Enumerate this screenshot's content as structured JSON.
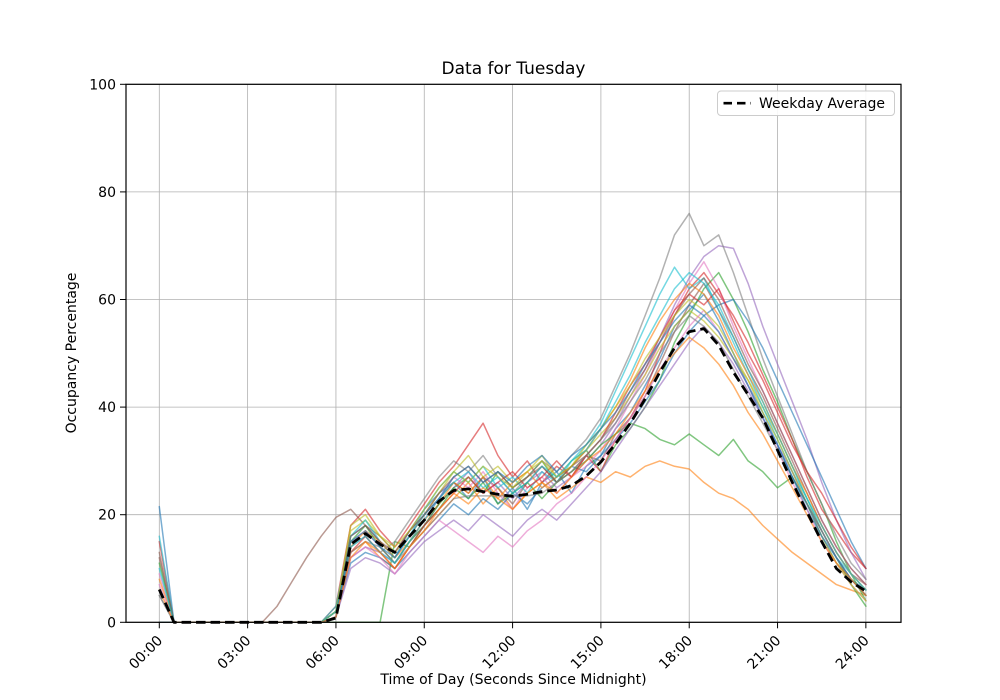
{
  "figure": {
    "background": "#ffffff"
  },
  "chart_data": {
    "type": "line",
    "title": "Data for Tuesday",
    "xlabel": "Time of Day (Seconds Since Midnight)",
    "ylabel": "Occupancy Percentage",
    "grid": true,
    "ylim": [
      0,
      100
    ],
    "y_ticks": [
      0,
      20,
      40,
      60,
      80,
      100
    ],
    "y_tick_labels": [
      "0",
      "20",
      "40",
      "60",
      "80",
      "100"
    ],
    "x_tick_hours": [
      0,
      3,
      6,
      9,
      12,
      15,
      18,
      21,
      24
    ],
    "x_tick_labels": [
      "00:00",
      "03:00",
      "06:00",
      "09:00",
      "12:00",
      "15:00",
      "18:00",
      "21:00",
      "24:00"
    ],
    "legend": {
      "position": "upper right",
      "entries": [
        {
          "label": "Weekday Average",
          "style": "dashed",
          "color": "#000000"
        }
      ]
    },
    "line_alpha": 0.6,
    "x_hours": [
      0,
      0.5,
      1,
      1.5,
      2,
      2.5,
      3,
      3.5,
      4,
      4.5,
      5,
      5.5,
      6,
      6.5,
      7,
      7.5,
      8,
      8.5,
      9,
      9.5,
      10,
      10.5,
      11,
      11.5,
      12,
      12.5,
      13,
      13.5,
      14,
      14.5,
      15,
      15.5,
      16,
      16.5,
      17,
      17.5,
      18,
      18.5,
      19,
      19.5,
      20,
      20.5,
      21,
      21.5,
      22,
      22.5,
      23,
      23.5,
      24
    ],
    "average_series": {
      "name": "Weekday Average",
      "color": "#000000",
      "dashed": true,
      "values": [
        6.1,
        0,
        0,
        0,
        0,
        0,
        0,
        0,
        0,
        0,
        0,
        0,
        0.8,
        14.5,
        16.5,
        14.5,
        13,
        16,
        19,
        22.5,
        24.5,
        24.8,
        24.3,
        23.8,
        23.4,
        23.8,
        24.3,
        24.6,
        25.4,
        27.2,
        29.8,
        33.2,
        37,
        41.5,
        46.5,
        51,
        54,
        54.6,
        51.5,
        46.5,
        42.3,
        38,
        32,
        26,
        20.5,
        15,
        10,
        7.5,
        5.8
      ]
    },
    "series": [
      {
        "name": "series-01",
        "color": "#1f77b4",
        "values": [
          21.5,
          0,
          0,
          0,
          0,
          0,
          0,
          0,
          0,
          0,
          0,
          0,
          2,
          16,
          18,
          15,
          12,
          17,
          21,
          24,
          26,
          23,
          27,
          22,
          25,
          21,
          26,
          28,
          24,
          29,
          31,
          36,
          39,
          44,
          49,
          55,
          58,
          61,
          56,
          50,
          44,
          39,
          33,
          27,
          21,
          16,
          11,
          8,
          6
        ]
      },
      {
        "name": "series-02",
        "color": "#ff7f0e",
        "values": [
          0,
          0,
          0,
          0,
          0,
          0,
          0,
          0,
          0,
          0,
          0,
          0,
          1,
          13,
          15,
          12,
          10,
          14,
          17,
          20,
          23,
          26,
          22,
          25,
          21,
          24,
          26,
          23,
          25,
          27,
          26,
          28,
          27,
          29,
          30,
          29,
          28.5,
          26,
          24,
          23,
          21,
          18,
          15.5,
          13,
          11,
          9,
          7,
          6,
          5
        ]
      },
      {
        "name": "series-03",
        "color": "#2ca02c",
        "values": [
          0,
          0,
          0,
          0,
          0,
          0,
          0,
          0,
          0,
          0,
          0,
          0,
          0,
          0,
          0,
          0,
          15,
          14,
          18,
          21,
          25,
          27,
          24,
          28,
          25,
          27,
          30,
          26,
          29,
          32,
          28,
          33,
          36,
          40,
          45,
          52,
          57,
          62,
          65,
          60,
          54,
          47,
          41,
          34,
          28,
          22,
          15,
          9,
          4
        ]
      },
      {
        "name": "series-04",
        "color": "#d62728",
        "values": [
          15,
          0,
          0,
          0,
          0,
          0,
          0,
          0,
          0,
          0,
          0,
          0,
          3,
          18,
          21,
          17,
          14,
          18,
          22,
          26,
          29,
          33,
          37,
          31,
          27,
          30,
          26,
          29,
          27,
          31,
          28,
          34,
          38,
          43,
          50,
          57,
          62,
          65,
          61,
          57,
          52,
          46,
          40,
          34,
          27,
          21,
          17,
          13,
          10
        ]
      },
      {
        "name": "series-05",
        "color": "#9467bd",
        "values": [
          0,
          0,
          0,
          0,
          0,
          0,
          0,
          0,
          0,
          0,
          0,
          0,
          1,
          12,
          14,
          13,
          11,
          15,
          18,
          22,
          25,
          28,
          24,
          26,
          23,
          26,
          28,
          25,
          27,
          30,
          33,
          37,
          42,
          47,
          53,
          59,
          64,
          68,
          70,
          69.5,
          63,
          55,
          48,
          41,
          34,
          26,
          19,
          13,
          8
        ]
      },
      {
        "name": "series-06",
        "color": "#8c564b",
        "values": [
          12,
          0,
          0,
          0,
          0,
          0,
          0,
          0,
          3,
          7.5,
          12,
          16,
          19.5,
          21,
          18,
          16,
          13,
          17,
          20,
          23,
          26,
          24,
          27,
          25,
          22,
          26,
          29,
          26,
          28,
          31,
          30,
          35,
          38,
          42,
          48,
          54,
          59,
          63,
          58,
          53,
          47,
          42,
          36,
          30,
          24,
          18,
          13,
          9,
          7
        ]
      },
      {
        "name": "series-07",
        "color": "#e377c2",
        "values": [
          9,
          0,
          0,
          0,
          0,
          0,
          0,
          0,
          0,
          0,
          0,
          0,
          2,
          15,
          17,
          14,
          11,
          15,
          19,
          23,
          27,
          25,
          28,
          24,
          21,
          25,
          27,
          24,
          27,
          29,
          32,
          36,
          41,
          46,
          52,
          58,
          63,
          67,
          62,
          55,
          49,
          43,
          37,
          31,
          25,
          19,
          14,
          10,
          7
        ]
      },
      {
        "name": "series-08",
        "color": "#7f7f7f",
        "values": [
          5,
          0,
          0,
          0,
          0,
          0,
          0,
          0,
          0,
          0,
          0,
          0,
          1,
          14,
          16,
          13,
          15,
          19,
          23,
          27,
          30,
          28,
          31,
          27,
          24,
          27,
          30,
          28,
          31,
          34,
          38,
          44,
          50,
          57,
          64,
          72,
          76,
          70,
          72,
          65,
          57,
          49,
          42,
          35,
          28,
          22,
          16,
          11,
          8
        ]
      },
      {
        "name": "series-09",
        "color": "#bcbd22",
        "values": [
          0,
          0,
          0,
          0,
          0,
          0,
          0,
          0,
          0,
          0,
          0,
          0,
          2,
          17,
          19,
          16,
          13,
          16,
          20,
          24,
          28,
          31,
          27,
          29,
          26,
          28,
          31,
          27,
          30,
          32,
          35,
          38,
          42,
          46,
          51,
          55,
          58,
          56,
          53,
          49,
          45,
          40,
          35,
          29,
          23,
          17,
          12,
          8,
          5
        ]
      },
      {
        "name": "series-10",
        "color": "#17becf",
        "values": [
          16,
          0,
          0,
          0,
          0,
          0,
          0,
          0,
          0,
          0,
          0,
          0,
          3,
          16,
          19,
          15,
          12,
          16,
          21,
          25,
          28,
          26,
          29,
          25,
          27,
          24,
          28,
          26,
          30,
          33,
          37,
          43,
          49,
          55,
          61,
          66,
          62,
          64,
          58,
          52,
          46,
          40,
          34,
          28,
          23,
          17,
          12,
          9,
          6
        ]
      },
      {
        "name": "series-11",
        "color": "#1f77b4",
        "values": [
          0,
          0,
          0,
          0,
          0,
          0,
          0,
          0,
          0,
          0,
          0,
          0,
          1,
          11,
          13,
          12,
          10,
          13,
          16,
          19,
          22,
          20,
          23,
          21,
          24,
          22,
          25,
          27,
          29,
          28,
          31,
          34,
          37,
          41,
          45,
          50,
          54,
          57,
          59,
          60,
          56,
          51,
          45,
          39,
          33,
          27,
          21,
          15,
          10
        ]
      },
      {
        "name": "series-12",
        "color": "#ff7f0e",
        "values": [
          8,
          0,
          0,
          0,
          0,
          0,
          0,
          0,
          0,
          0,
          0,
          0,
          2,
          14,
          17,
          15,
          12,
          15,
          19,
          22,
          26,
          24,
          27,
          23,
          26,
          28,
          25,
          27,
          29,
          32,
          36,
          40,
          45,
          51,
          56,
          60,
          63,
          61,
          57,
          51,
          46,
          41,
          35,
          29,
          24,
          18,
          13,
          9,
          6
        ]
      },
      {
        "name": "series-13",
        "color": "#2ca02c",
        "values": [
          11,
          0,
          0,
          0,
          0,
          0,
          0,
          0,
          0,
          0,
          0,
          0,
          2,
          15,
          18,
          14,
          11,
          15,
          18,
          22,
          25,
          23,
          26,
          22,
          24,
          26,
          23,
          26,
          28,
          30,
          33,
          35,
          37,
          36,
          34,
          33,
          35,
          33,
          31,
          34,
          30,
          28,
          25,
          27,
          22,
          17,
          12,
          7,
          3
        ]
      },
      {
        "name": "series-14",
        "color": "#d62728",
        "values": [
          0,
          0,
          0,
          0,
          0,
          0,
          0,
          0,
          0,
          0,
          0,
          0,
          1,
          13,
          16,
          13,
          10,
          14,
          18,
          21,
          24,
          27,
          24,
          26,
          28,
          25,
          27,
          30,
          27,
          31,
          34,
          39,
          44,
          48,
          53,
          58,
          61,
          59,
          62,
          56,
          50,
          45,
          39,
          33,
          28,
          24,
          19,
          14,
          10
        ]
      },
      {
        "name": "series-15",
        "color": "#9467bd",
        "values": [
          0,
          0,
          0,
          0,
          0,
          0,
          0,
          0,
          0,
          0,
          0,
          0,
          1,
          10,
          12,
          11,
          9,
          12,
          15,
          17,
          19,
          17,
          20,
          18,
          16,
          19,
          21,
          19,
          22,
          25,
          28,
          32,
          36,
          40,
          44,
          48,
          52,
          55,
          52,
          48,
          43,
          38,
          33,
          28,
          22,
          17,
          12,
          8,
          5
        ]
      },
      {
        "name": "series-16",
        "color": "#8c564b",
        "values": [
          13,
          0,
          0,
          0,
          0,
          0,
          0,
          0,
          0,
          0,
          0,
          0,
          2,
          16,
          18,
          15,
          13,
          17,
          20,
          24,
          27,
          29,
          26,
          28,
          25,
          27,
          29,
          26,
          29,
          31,
          34,
          38,
          43,
          47,
          52,
          57,
          61,
          64,
          60,
          54,
          48,
          43,
          37,
          31,
          25,
          19,
          14,
          10,
          7
        ]
      },
      {
        "name": "series-17",
        "color": "#e377c2",
        "values": [
          7,
          0,
          0,
          0,
          0,
          0,
          0,
          0,
          0,
          0,
          0,
          0,
          1,
          12,
          14,
          12,
          9,
          13,
          16,
          19,
          17,
          15,
          13,
          16,
          14,
          17,
          19,
          22,
          24,
          27,
          30,
          34,
          38,
          42,
          47,
          51,
          55,
          58,
          54,
          49,
          44,
          38,
          32,
          26,
          21,
          15,
          11,
          7,
          4
        ]
      },
      {
        "name": "series-18",
        "color": "#7f7f7f",
        "values": [
          5,
          0,
          0,
          0,
          0,
          0,
          0,
          0,
          0,
          0,
          0,
          0,
          1,
          13,
          15,
          14,
          11,
          14,
          17,
          20,
          23,
          23.5,
          23.5,
          23.5,
          23.5,
          23.5,
          24,
          26,
          28,
          31,
          34,
          37,
          41,
          45,
          50,
          54,
          57,
          55,
          52,
          47,
          42,
          37,
          32,
          27,
          22,
          17,
          12,
          8,
          5
        ]
      },
      {
        "name": "series-19",
        "color": "#bcbd22",
        "values": [
          0,
          0,
          0,
          0,
          0,
          0,
          0,
          0,
          0,
          0,
          0,
          0,
          2,
          18,
          20,
          16,
          14,
          17,
          21,
          25,
          28,
          26,
          29,
          27,
          25,
          28,
          30,
          27,
          29,
          33,
          36,
          40,
          44,
          49,
          53,
          57,
          60,
          58,
          55,
          50,
          45,
          39,
          34,
          28,
          22,
          16,
          11,
          7,
          4
        ]
      },
      {
        "name": "series-20",
        "color": "#17becf",
        "values": [
          10,
          0,
          0,
          0,
          0,
          0,
          0,
          0,
          0,
          0,
          0,
          0,
          2,
          14,
          16,
          13,
          11,
          15,
          19,
          23,
          26,
          28,
          25,
          27,
          24,
          26,
          29,
          27,
          30,
          32,
          36,
          41,
          46,
          52,
          57,
          62,
          65,
          63,
          59,
          53,
          47,
          41,
          35,
          29,
          23,
          18,
          13,
          9,
          6
        ]
      },
      {
        "name": "series-21",
        "color": "#1f77b4",
        "values": [
          0,
          0,
          0,
          0,
          0,
          0,
          0,
          0,
          0,
          0,
          0,
          0,
          1,
          15,
          17,
          14,
          12,
          16,
          20,
          23,
          27,
          29,
          26,
          28,
          26,
          29,
          31,
          28,
          31,
          33,
          36,
          39,
          43,
          48,
          52,
          56,
          59,
          57,
          54,
          49,
          44,
          38,
          33,
          27,
          22,
          16,
          12,
          8,
          5
        ]
      },
      {
        "name": "series-22",
        "color": "#ff7f0e",
        "values": [
          6,
          0,
          0,
          0,
          0,
          0,
          0,
          0,
          0,
          0,
          0,
          0,
          1,
          12,
          15,
          13,
          10,
          14,
          17,
          21,
          24,
          22,
          25,
          23,
          21,
          24,
          26,
          24,
          27,
          30,
          32,
          35,
          39,
          43,
          47,
          50,
          53,
          51,
          48,
          44,
          39,
          35,
          30,
          25,
          20,
          15,
          11,
          8,
          5
        ]
      }
    ]
  }
}
